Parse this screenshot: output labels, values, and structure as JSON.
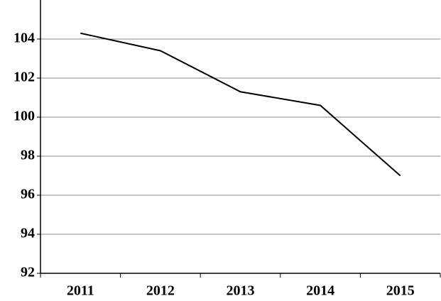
{
  "chart_data": {
    "type": "line",
    "categories": [
      "2011",
      "2012",
      "2013",
      "2014",
      "2015"
    ],
    "series": [
      {
        "color": "#000000",
        "values": [
          104.3,
          103.4,
          101.3,
          100.6,
          97.0
        ]
      }
    ],
    "ylim": [
      92,
      106
    ],
    "yticks": [
      92,
      94,
      96,
      98,
      100,
      102,
      104
    ],
    "grid": true
  }
}
